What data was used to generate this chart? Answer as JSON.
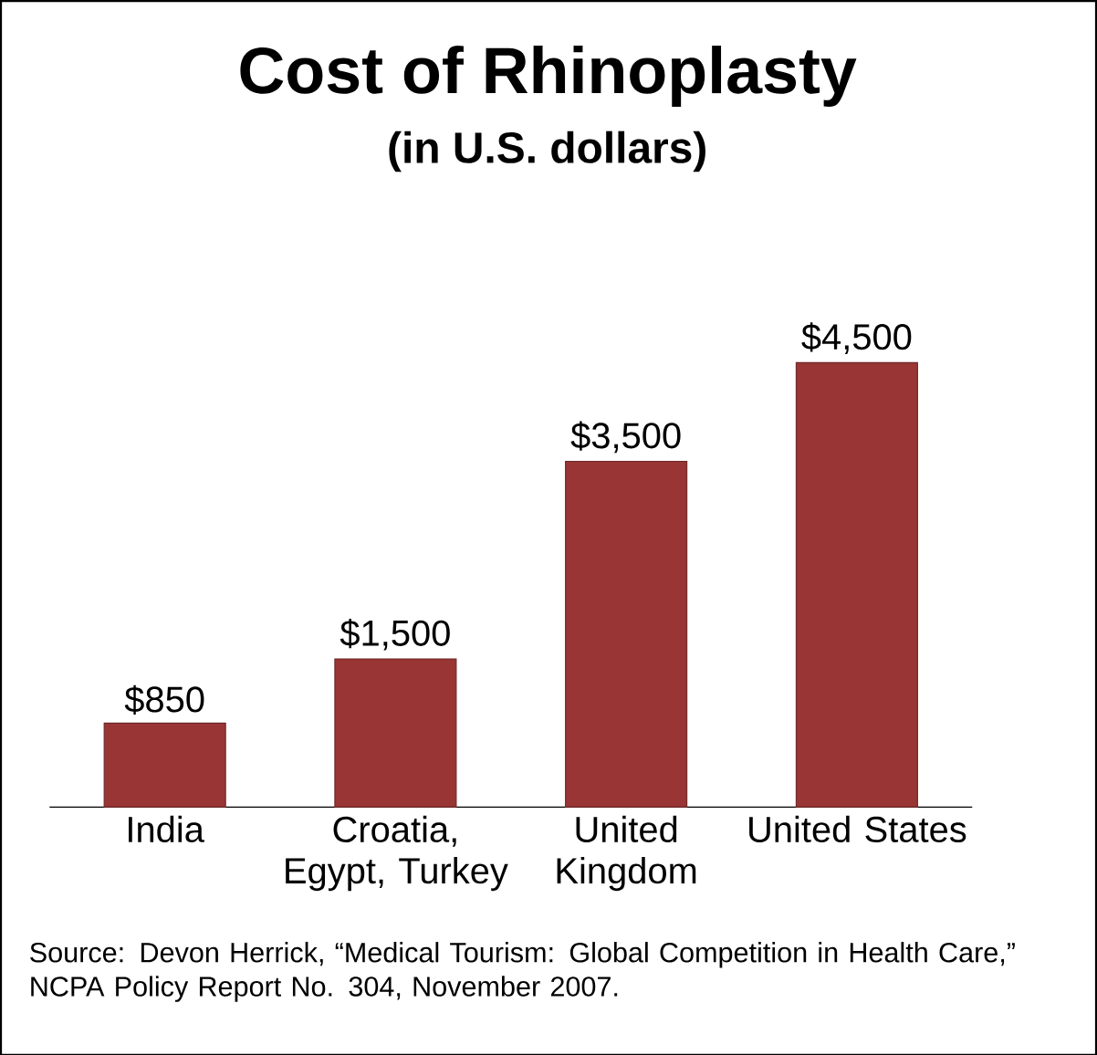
{
  "chart_data": {
    "type": "bar",
    "title": "Cost of Rhinoplasty",
    "subtitle": "(in U.S. dollars)",
    "categories": [
      "India",
      "Croatia, Egypt, Turkey",
      "United Kingdom",
      "United States"
    ],
    "values": [
      850,
      1500,
      3500,
      4500
    ],
    "value_labels": [
      "$850",
      "$1,500",
      "$3,500",
      "$4,500"
    ],
    "color": "#993535",
    "annotations": [
      "Source: Devon Herrick, “Medical Tourism: Global Competition in Health Care,” NCPA Policy Report No. 304, November 2007."
    ]
  }
}
